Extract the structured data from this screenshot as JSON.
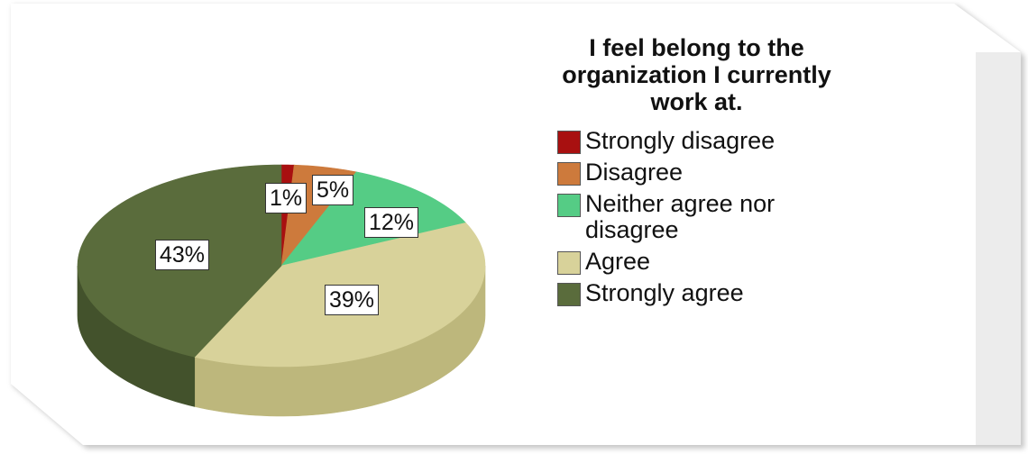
{
  "chart_data": {
    "type": "pie",
    "title": "I feel belong to the organization I currently work at.",
    "categories": [
      "Strongly disagree",
      "Disagree",
      "Neither agree nor disagree",
      "Agree",
      "Strongly agree"
    ],
    "values": [
      1,
      5,
      12,
      39,
      43
    ],
    "data_labels": [
      "1%",
      "5%",
      "12%",
      "39%",
      "43%"
    ],
    "colors": [
      "#a81010",
      "#cd7a3c",
      "#55cc85",
      "#d8d29a",
      "#5a6c3c"
    ],
    "side_colors": [
      "#7a0a0a",
      "#9c5a28",
      "#3d9662",
      "#bdb77c",
      "#43522c"
    ],
    "legend_position": "right",
    "style": "3d"
  }
}
